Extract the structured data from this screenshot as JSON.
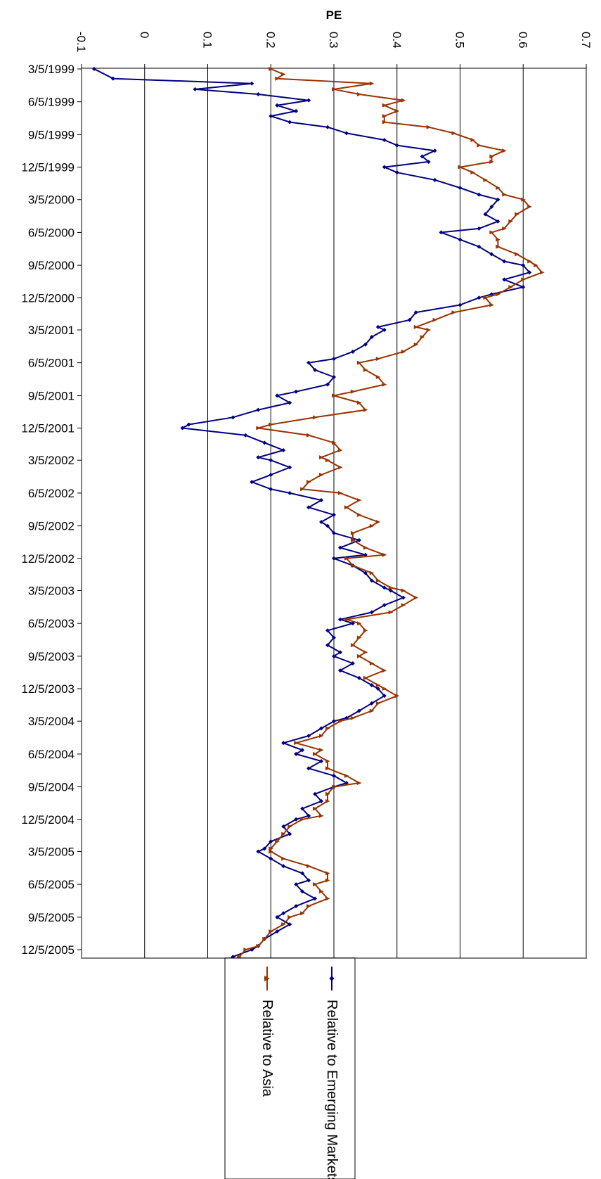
{
  "chart_data": {
    "type": "line",
    "title": "PE",
    "xlabel": "",
    "ylabel": "",
    "orientation": "rotated-90-clockwise",
    "x_ticks": [
      "3/5/1999",
      "6/5/1999",
      "9/5/1999",
      "12/5/1999",
      "3/5/2000",
      "6/5/2000",
      "9/5/2000",
      "12/5/2000",
      "3/5/2001",
      "6/5/2001",
      "9/5/2001",
      "12/5/2001",
      "3/5/2002",
      "6/5/2002",
      "9/5/2002",
      "12/5/2002",
      "3/5/2003",
      "6/5/2003",
      "9/5/2003",
      "12/5/2003",
      "3/5/2004",
      "6/5/2004",
      "9/5/2004",
      "12/5/2004",
      "3/5/2005",
      "6/5/2005",
      "9/5/2005",
      "12/5/2005"
    ],
    "y_ticks": [
      "-0.1",
      "0",
      "0.1",
      "0.2",
      "0.3",
      "0.4",
      "0.5",
      "0.6",
      "0.7"
    ],
    "ylim": [
      -0.1,
      0.7
    ],
    "grid": true,
    "legend_position": "bottom",
    "series": [
      {
        "name": "Relative to Emerging Markets",
        "color": "#000080",
        "marker": "diamond",
        "points": [
          [
            "3/5/1999",
            -0.08
          ],
          [
            "4/1/1999",
            -0.05
          ],
          [
            "4/15/1999",
            0.17
          ],
          [
            "5/1/1999",
            0.08
          ],
          [
            "5/15/1999",
            0.18
          ],
          [
            "6/1/1999",
            0.26
          ],
          [
            "6/15/1999",
            0.21
          ],
          [
            "7/1/1999",
            0.24
          ],
          [
            "7/15/1999",
            0.2
          ],
          [
            "8/1/1999",
            0.23
          ],
          [
            "8/15/1999",
            0.29
          ],
          [
            "9/1/1999",
            0.32
          ],
          [
            "9/20/1999",
            0.38
          ],
          [
            "10/5/1999",
            0.4
          ],
          [
            "10/20/1999",
            0.46
          ],
          [
            "11/5/1999",
            0.44
          ],
          [
            "11/20/1999",
            0.45
          ],
          [
            "12/5/1999",
            0.38
          ],
          [
            "12/20/1999",
            0.4
          ],
          [
            "1/10/2000",
            0.46
          ],
          [
            "2/1/2000",
            0.5
          ],
          [
            "2/20/2000",
            0.53
          ],
          [
            "3/5/2000",
            0.56
          ],
          [
            "3/25/2000",
            0.55
          ],
          [
            "4/15/2000",
            0.54
          ],
          [
            "5/5/2000",
            0.56
          ],
          [
            "5/25/2000",
            0.53
          ],
          [
            "6/5/2000",
            0.47
          ],
          [
            "6/25/2000",
            0.5
          ],
          [
            "7/15/2000",
            0.53
          ],
          [
            "8/5/2000",
            0.55
          ],
          [
            "8/25/2000",
            0.57
          ],
          [
            "9/5/2000",
            0.6
          ],
          [
            "9/25/2000",
            0.61
          ],
          [
            "10/15/2000",
            0.57
          ],
          [
            "11/5/2000",
            0.6
          ],
          [
            "11/25/2000",
            0.55
          ],
          [
            "12/5/2000",
            0.53
          ],
          [
            "12/25/2000",
            0.5
          ],
          [
            "1/15/2001",
            0.43
          ],
          [
            "2/5/2001",
            0.42
          ],
          [
            "2/25/2001",
            0.37
          ],
          [
            "3/5/2001",
            0.38
          ],
          [
            "3/25/2001",
            0.36
          ],
          [
            "4/15/2001",
            0.35
          ],
          [
            "5/5/2001",
            0.33
          ],
          [
            "5/25/2001",
            0.3
          ],
          [
            "6/5/2001",
            0.26
          ],
          [
            "6/25/2001",
            0.27
          ],
          [
            "7/15/2001",
            0.3
          ],
          [
            "8/5/2001",
            0.29
          ],
          [
            "8/25/2001",
            0.24
          ],
          [
            "9/5/2001",
            0.21
          ],
          [
            "9/25/2001",
            0.23
          ],
          [
            "10/15/2001",
            0.18
          ],
          [
            "11/5/2001",
            0.14
          ],
          [
            "11/25/2001",
            0.07
          ],
          [
            "12/5/2001",
            0.06
          ],
          [
            "12/25/2001",
            0.16
          ],
          [
            "1/15/2002",
            0.19
          ],
          [
            "2/5/2002",
            0.22
          ],
          [
            "2/25/2002",
            0.18
          ],
          [
            "3/5/2002",
            0.2
          ],
          [
            "3/25/2002",
            0.23
          ],
          [
            "4/15/2002",
            0.2
          ],
          [
            "5/5/2002",
            0.17
          ],
          [
            "5/25/2002",
            0.2
          ],
          [
            "6/5/2002",
            0.23
          ],
          [
            "6/25/2002",
            0.28
          ],
          [
            "7/15/2002",
            0.26
          ],
          [
            "8/5/2002",
            0.3
          ],
          [
            "8/25/2002",
            0.28
          ],
          [
            "9/5/2002",
            0.29
          ],
          [
            "9/25/2002",
            0.3
          ],
          [
            "10/15/2002",
            0.34
          ],
          [
            "11/5/2002",
            0.31
          ],
          [
            "11/25/2002",
            0.35
          ],
          [
            "12/5/2002",
            0.3
          ],
          [
            "12/25/2002",
            0.33
          ],
          [
            "1/15/2003",
            0.35
          ],
          [
            "2/5/2003",
            0.36
          ],
          [
            "2/25/2003",
            0.38
          ],
          [
            "3/5/2003",
            0.39
          ],
          [
            "3/25/2003",
            0.41
          ],
          [
            "4/15/2003",
            0.38
          ],
          [
            "5/5/2003",
            0.36
          ],
          [
            "5/25/2003",
            0.31
          ],
          [
            "6/5/2003",
            0.33
          ],
          [
            "6/25/2003",
            0.29
          ],
          [
            "7/15/2003",
            0.3
          ],
          [
            "8/5/2003",
            0.29
          ],
          [
            "8/25/2003",
            0.31
          ],
          [
            "9/5/2003",
            0.3
          ],
          [
            "9/25/2003",
            0.33
          ],
          [
            "10/15/2003",
            0.31
          ],
          [
            "11/5/2003",
            0.34
          ],
          [
            "11/25/2003",
            0.36
          ],
          [
            "12/5/2003",
            0.37
          ],
          [
            "12/25/2003",
            0.38
          ],
          [
            "1/15/2004",
            0.36
          ],
          [
            "2/5/2004",
            0.34
          ],
          [
            "2/25/2004",
            0.32
          ],
          [
            "3/5/2004",
            0.3
          ],
          [
            "3/25/2004",
            0.28
          ],
          [
            "4/15/2004",
            0.26
          ],
          [
            "5/5/2004",
            0.22
          ],
          [
            "5/25/2004",
            0.25
          ],
          [
            "6/5/2004",
            0.24
          ],
          [
            "6/25/2004",
            0.28
          ],
          [
            "7/15/2004",
            0.26
          ],
          [
            "8/5/2004",
            0.3
          ],
          [
            "8/25/2004",
            0.32
          ],
          [
            "9/5/2004",
            0.3
          ],
          [
            "9/25/2004",
            0.27
          ],
          [
            "10/15/2004",
            0.28
          ],
          [
            "11/5/2004",
            0.25
          ],
          [
            "11/25/2004",
            0.26
          ],
          [
            "12/5/2004",
            0.24
          ],
          [
            "12/25/2004",
            0.22
          ],
          [
            "1/15/2005",
            0.23
          ],
          [
            "2/5/2005",
            0.2
          ],
          [
            "2/25/2005",
            0.19
          ],
          [
            "3/5/2005",
            0.18
          ],
          [
            "3/25/2005",
            0.2
          ],
          [
            "4/15/2005",
            0.22
          ],
          [
            "5/5/2005",
            0.25
          ],
          [
            "5/25/2005",
            0.26
          ],
          [
            "6/5/2005",
            0.24
          ],
          [
            "6/25/2005",
            0.25
          ],
          [
            "7/15/2005",
            0.27
          ],
          [
            "8/5/2005",
            0.24
          ],
          [
            "8/25/2005",
            0.22
          ],
          [
            "9/5/2005",
            0.21
          ],
          [
            "9/25/2005",
            0.23
          ],
          [
            "10/15/2005",
            0.21
          ],
          [
            "11/5/2005",
            0.19
          ],
          [
            "11/25/2005",
            0.18
          ],
          [
            "12/5/2005",
            0.17
          ],
          [
            "12/25/2005",
            0.14
          ],
          [
            "1/5/2006",
            0.13
          ]
        ]
      },
      {
        "name": "Relative to Asia",
        "color": "#993300",
        "marker": "triangle",
        "points": [
          [
            "3/5/1999",
            0.2
          ],
          [
            "3/20/1999",
            0.22
          ],
          [
            "4/1/1999",
            0.21
          ],
          [
            "4/15/1999",
            0.36
          ],
          [
            "5/1/1999",
            0.3
          ],
          [
            "5/15/1999",
            0.34
          ],
          [
            "6/1/1999",
            0.41
          ],
          [
            "6/15/1999",
            0.38
          ],
          [
            "7/1/1999",
            0.4
          ],
          [
            "7/15/1999",
            0.38
          ],
          [
            "8/1/1999",
            0.38
          ],
          [
            "8/15/1999",
            0.45
          ],
          [
            "9/1/1999",
            0.49
          ],
          [
            "9/20/1999",
            0.52
          ],
          [
            "10/5/1999",
            0.53
          ],
          [
            "10/20/1999",
            0.57
          ],
          [
            "11/5/1999",
            0.55
          ],
          [
            "11/20/1999",
            0.55
          ],
          [
            "12/5/1999",
            0.5
          ],
          [
            "12/20/1999",
            0.52
          ],
          [
            "1/10/2000",
            0.54
          ],
          [
            "2/1/2000",
            0.56
          ],
          [
            "2/20/2000",
            0.57
          ],
          [
            "3/5/2000",
            0.6
          ],
          [
            "3/25/2000",
            0.61
          ],
          [
            "4/15/2000",
            0.59
          ],
          [
            "5/5/2000",
            0.58
          ],
          [
            "5/25/2000",
            0.57
          ],
          [
            "6/5/2000",
            0.55
          ],
          [
            "6/25/2000",
            0.56
          ],
          [
            "7/15/2000",
            0.56
          ],
          [
            "8/5/2000",
            0.59
          ],
          [
            "8/25/2000",
            0.61
          ],
          [
            "9/5/2000",
            0.62
          ],
          [
            "9/25/2000",
            0.63
          ],
          [
            "10/15/2000",
            0.6
          ],
          [
            "11/5/2000",
            0.58
          ],
          [
            "11/25/2000",
            0.56
          ],
          [
            "12/5/2000",
            0.54
          ],
          [
            "12/25/2000",
            0.55
          ],
          [
            "1/15/2001",
            0.49
          ],
          [
            "2/5/2001",
            0.46
          ],
          [
            "2/25/2001",
            0.43
          ],
          [
            "3/5/2001",
            0.45
          ],
          [
            "3/25/2001",
            0.44
          ],
          [
            "4/15/2001",
            0.43
          ],
          [
            "5/5/2001",
            0.41
          ],
          [
            "5/25/2001",
            0.37
          ],
          [
            "6/5/2001",
            0.34
          ],
          [
            "6/25/2001",
            0.35
          ],
          [
            "7/15/2001",
            0.37
          ],
          [
            "8/5/2001",
            0.38
          ],
          [
            "8/25/2001",
            0.33
          ],
          [
            "9/5/2001",
            0.3
          ],
          [
            "9/25/2001",
            0.34
          ],
          [
            "10/15/2001",
            0.35
          ],
          [
            "11/5/2001",
            0.27
          ],
          [
            "11/25/2001",
            0.2
          ],
          [
            "12/5/2001",
            0.18
          ],
          [
            "12/25/2001",
            0.26
          ],
          [
            "1/15/2002",
            0.3
          ],
          [
            "2/5/2002",
            0.31
          ],
          [
            "2/25/2002",
            0.28
          ],
          [
            "3/5/2002",
            0.29
          ],
          [
            "3/25/2002",
            0.31
          ],
          [
            "4/15/2002",
            0.28
          ],
          [
            "5/5/2002",
            0.26
          ],
          [
            "5/25/2002",
            0.25
          ],
          [
            "6/5/2002",
            0.31
          ],
          [
            "6/25/2002",
            0.34
          ],
          [
            "7/15/2002",
            0.32
          ],
          [
            "8/5/2002",
            0.34
          ],
          [
            "8/25/2002",
            0.37
          ],
          [
            "9/5/2002",
            0.36
          ],
          [
            "9/25/2002",
            0.33
          ],
          [
            "10/15/2002",
            0.33
          ],
          [
            "11/5/2002",
            0.35
          ],
          [
            "11/25/2002",
            0.38
          ],
          [
            "12/5/2002",
            0.32
          ],
          [
            "12/25/2002",
            0.33
          ],
          [
            "1/15/2003",
            0.36
          ],
          [
            "2/5/2003",
            0.37
          ],
          [
            "2/25/2003",
            0.39
          ],
          [
            "3/5/2003",
            0.41
          ],
          [
            "3/25/2003",
            0.43
          ],
          [
            "4/15/2003",
            0.41
          ],
          [
            "5/5/2003",
            0.39
          ],
          [
            "5/25/2003",
            0.32
          ],
          [
            "6/5/2003",
            0.34
          ],
          [
            "6/25/2003",
            0.35
          ],
          [
            "7/15/2003",
            0.34
          ],
          [
            "8/5/2003",
            0.33
          ],
          [
            "8/25/2003",
            0.35
          ],
          [
            "9/5/2003",
            0.34
          ],
          [
            "9/25/2003",
            0.36
          ],
          [
            "10/15/2003",
            0.38
          ],
          [
            "11/5/2003",
            0.35
          ],
          [
            "11/25/2003",
            0.37
          ],
          [
            "12/5/2003",
            0.38
          ],
          [
            "12/25/2003",
            0.4
          ],
          [
            "1/15/2004",
            0.37
          ],
          [
            "2/5/2004",
            0.36
          ],
          [
            "2/25/2004",
            0.33
          ],
          [
            "3/5/2004",
            0.31
          ],
          [
            "3/25/2004",
            0.29
          ],
          [
            "4/15/2004",
            0.28
          ],
          [
            "5/5/2004",
            0.24
          ],
          [
            "5/25/2004",
            0.28
          ],
          [
            "6/5/2004",
            0.27
          ],
          [
            "6/25/2004",
            0.29
          ],
          [
            "7/15/2004",
            0.29
          ],
          [
            "8/5/2004",
            0.32
          ],
          [
            "8/25/2004",
            0.34
          ],
          [
            "9/5/2004",
            0.3
          ],
          [
            "9/25/2004",
            0.29
          ],
          [
            "10/15/2004",
            0.29
          ],
          [
            "11/5/2004",
            0.27
          ],
          [
            "11/25/2004",
            0.28
          ],
          [
            "12/5/2004",
            0.25
          ],
          [
            "12/25/2004",
            0.23
          ],
          [
            "1/15/2005",
            0.22
          ],
          [
            "2/5/2005",
            0.21
          ],
          [
            "2/25/2005",
            0.2
          ],
          [
            "3/5/2005",
            0.2
          ],
          [
            "3/25/2005",
            0.22
          ],
          [
            "4/15/2005",
            0.26
          ],
          [
            "5/5/2005",
            0.29
          ],
          [
            "5/25/2005",
            0.29
          ],
          [
            "6/5/2005",
            0.27
          ],
          [
            "6/25/2005",
            0.28
          ],
          [
            "7/15/2005",
            0.29
          ],
          [
            "8/5/2005",
            0.26
          ],
          [
            "8/25/2005",
            0.25
          ],
          [
            "9/5/2005",
            0.23
          ],
          [
            "9/25/2005",
            0.22
          ],
          [
            "10/15/2005",
            0.2
          ],
          [
            "11/5/2005",
            0.19
          ],
          [
            "11/25/2005",
            0.18
          ],
          [
            "12/5/2005",
            0.16
          ],
          [
            "12/25/2005",
            0.15
          ],
          [
            "1/5/2006",
            0.14
          ]
        ]
      }
    ]
  }
}
